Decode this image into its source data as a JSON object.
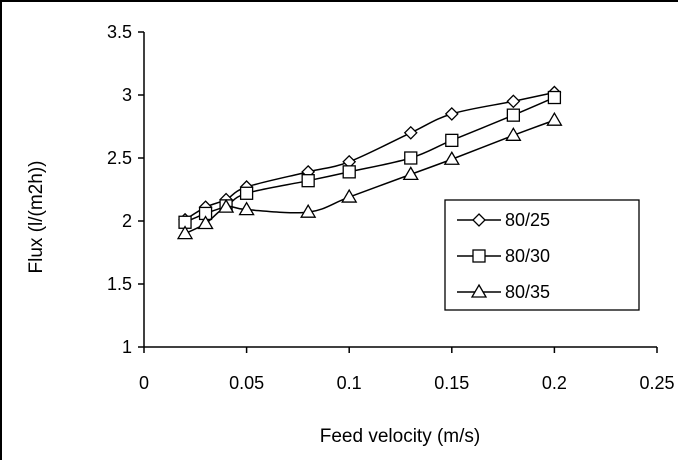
{
  "chart_data": {
    "type": "line",
    "title": "",
    "xlabel": "Feed velocity (m/s)",
    "ylabel": "Flux (l/(m2h))",
    "xlim": [
      0,
      0.25
    ],
    "ylim": [
      1,
      3.5
    ],
    "x_ticks": [
      "0",
      "0.05",
      "0.1",
      "0.15",
      "0.2",
      "0.25"
    ],
    "y_ticks": [
      "1",
      "1.5",
      "2",
      "2.5",
      "3",
      "3.5"
    ],
    "grid": false,
    "legend_position": "center-right",
    "series": [
      {
        "name": "80/25",
        "marker": "diamond",
        "x": [
          0.02,
          0.03,
          0.04,
          0.05,
          0.08,
          0.1,
          0.13,
          0.15,
          0.18,
          0.2
        ],
        "y": [
          2.01,
          2.11,
          2.17,
          2.27,
          2.39,
          2.47,
          2.7,
          2.85,
          2.95,
          3.02
        ]
      },
      {
        "name": "80/30",
        "marker": "square",
        "x": [
          0.02,
          0.03,
          0.04,
          0.05,
          0.08,
          0.1,
          0.13,
          0.15,
          0.18,
          0.2
        ],
        "y": [
          1.99,
          2.06,
          2.12,
          2.22,
          2.32,
          2.39,
          2.5,
          2.64,
          2.84,
          2.98
        ]
      },
      {
        "name": "80/35",
        "marker": "triangle",
        "x": [
          0.02,
          0.03,
          0.04,
          0.05,
          0.08,
          0.1,
          0.13,
          0.15,
          0.18,
          0.2
        ],
        "y": [
          1.9,
          1.98,
          2.11,
          2.09,
          2.07,
          2.19,
          2.37,
          2.49,
          2.68,
          2.8
        ]
      }
    ]
  }
}
